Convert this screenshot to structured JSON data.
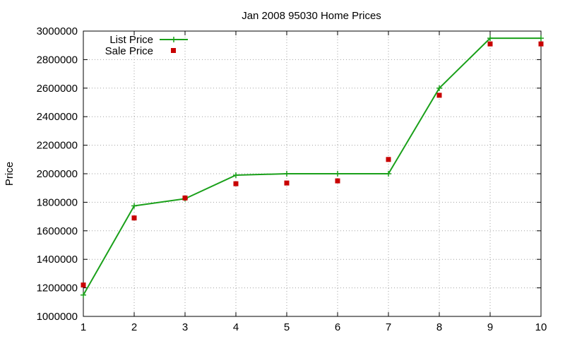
{
  "chart_data": {
    "type": "line",
    "title": "Jan 2008 95030 Home Prices",
    "xlabel": "",
    "ylabel": "Price",
    "x": [
      1,
      2,
      3,
      4,
      5,
      6,
      7,
      8,
      9,
      10
    ],
    "xlim": [
      1,
      10
    ],
    "ylim": [
      1000000,
      3000000
    ],
    "xticks": [
      "1",
      "2",
      "3",
      "4",
      "5",
      "6",
      "7",
      "8",
      "9",
      "10"
    ],
    "yticks": [
      "1000000",
      "1200000",
      "1400000",
      "1600000",
      "1800000",
      "2000000",
      "2200000",
      "2400000",
      "2600000",
      "2800000",
      "3000000"
    ],
    "grid": true,
    "legend_position": "top-left",
    "series": [
      {
        "name": "List Price",
        "style": "linespoints",
        "marker": "plus",
        "color": "#1aa01a",
        "values": [
          1150000,
          1775000,
          1825000,
          1990000,
          2000000,
          2000000,
          2000000,
          2600000,
          2950000,
          2950000
        ]
      },
      {
        "name": "Sale Price",
        "style": "points",
        "marker": "square",
        "color": "#c80000",
        "values": [
          1220000,
          1690000,
          1830000,
          1930000,
          1935000,
          1950000,
          2100000,
          2550000,
          2910000,
          2910000
        ]
      }
    ]
  }
}
